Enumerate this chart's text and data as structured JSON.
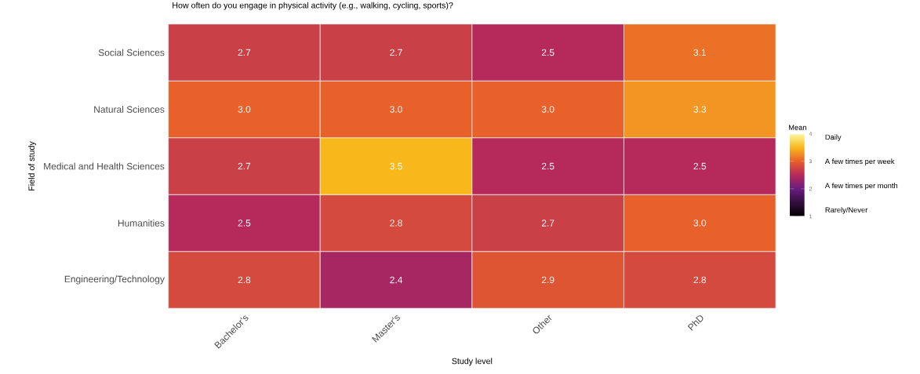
{
  "chart_data": {
    "type": "heatmap",
    "title": "How often do you engage in physical activity (e.g., walking, cycling, sports)?",
    "xlabel": "Study level",
    "ylabel": "Field of study",
    "clabel": "Mean",
    "categories": [
      "Bachelor's",
      "Master's",
      "Other",
      "PhD"
    ],
    "y_categories": [
      "Social Sciences",
      "Natural Sciences",
      "Medical and Health Sciences",
      "Humanities",
      "Engineering/Technology"
    ],
    "cells": [
      [
        2.7,
        2.7,
        2.5,
        3.1
      ],
      [
        3.0,
        3.0,
        3.0,
        3.3
      ],
      [
        2.7,
        3.5,
        2.5,
        2.5
      ],
      [
        2.5,
        2.8,
        2.7,
        3.0
      ],
      [
        2.8,
        2.4,
        2.9,
        2.8
      ]
    ],
    "cell_labels": [
      [
        "2.7",
        "2.7",
        "2.5",
        "3.1"
      ],
      [
        "3.0",
        "3.0",
        "3.0",
        "3.3"
      ],
      [
        "2.7",
        "3.5",
        "2.5",
        "2.5"
      ],
      [
        "2.5",
        "2.8",
        "2.7",
        "3.0"
      ],
      [
        "2.8",
        "2.4",
        "2.9",
        "2.8"
      ]
    ],
    "clim": [
      1,
      4
    ],
    "cticks": [
      1,
      2,
      3,
      4
    ],
    "data_labels": true,
    "annotations": [
      "Daily",
      "A few times per week",
      "A few times per month",
      "Rarely/Never"
    ]
  }
}
